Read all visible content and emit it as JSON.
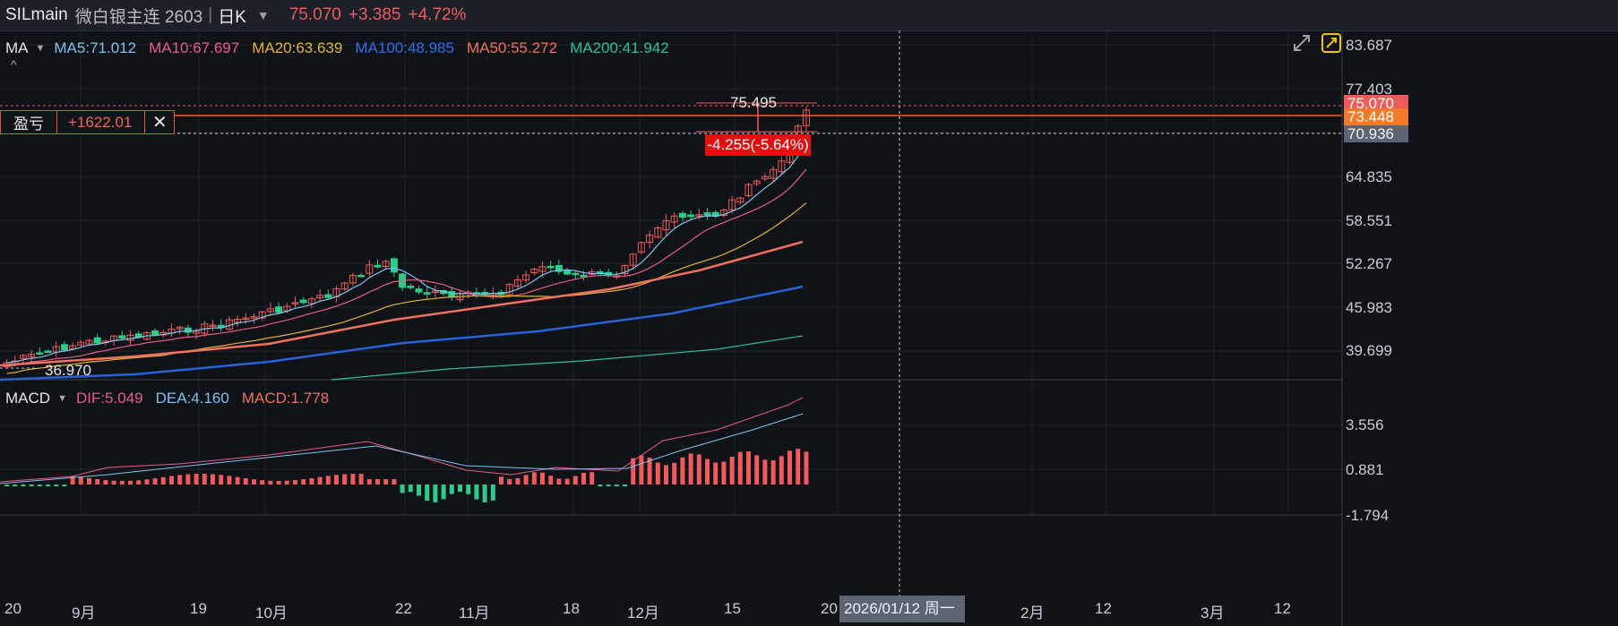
{
  "header": {
    "symbol": "SILmain",
    "name": "微白银主连 2603",
    "period": "日K",
    "last": "75.070",
    "change": "+3.385",
    "change_pct": "+4.72%"
  },
  "ma_legend": {
    "indicator": "MA",
    "ma5": "MA5:71.012",
    "ma10": "MA10:67.697",
    "ma20": "MA20:63.639",
    "ma100": "MA100:48.985",
    "ma50": "MA50:55.272",
    "ma200": "MA200:41.942",
    "colors": {
      "ma5": "#7fc3ea",
      "ma10": "#e85c8a",
      "ma20": "#e2b33a",
      "ma100": "#2762d8",
      "ma50": "#f0725e",
      "ma200": "#2fbf9c"
    }
  },
  "macd_legend": {
    "indicator": "MACD",
    "dif": "DIF:5.049",
    "dea": "DEA:4.160",
    "macd": "MACD:1.778"
  },
  "pnl": {
    "label": "盈亏",
    "value": "+1622.01"
  },
  "price_axis": [
    "83.687",
    "77.403",
    "70.936",
    "64.835",
    "58.551",
    "52.267",
    "45.983",
    "39.699"
  ],
  "macd_axis": [
    "3.556",
    "0.881",
    "-1.794"
  ],
  "price_tags": {
    "last": "75.070",
    "position": "73.448",
    "cursor": "70.936"
  },
  "measure": {
    "high_label": "75.495",
    "low_label": "36.970",
    "diff": "-4.255(-5.64%)"
  },
  "x_axis": [
    "20",
    "9月",
    "19",
    "10月",
    "22",
    "11月",
    "18",
    "12月",
    "15",
    "20",
    "2月",
    "12",
    "3月",
    "12"
  ],
  "hover_date": "2026/01/12 周一",
  "colors": {
    "up": "#f05a5a",
    "down": "#2ecc8a",
    "bg": "#0f1216",
    "grid": "#262b33"
  }
}
